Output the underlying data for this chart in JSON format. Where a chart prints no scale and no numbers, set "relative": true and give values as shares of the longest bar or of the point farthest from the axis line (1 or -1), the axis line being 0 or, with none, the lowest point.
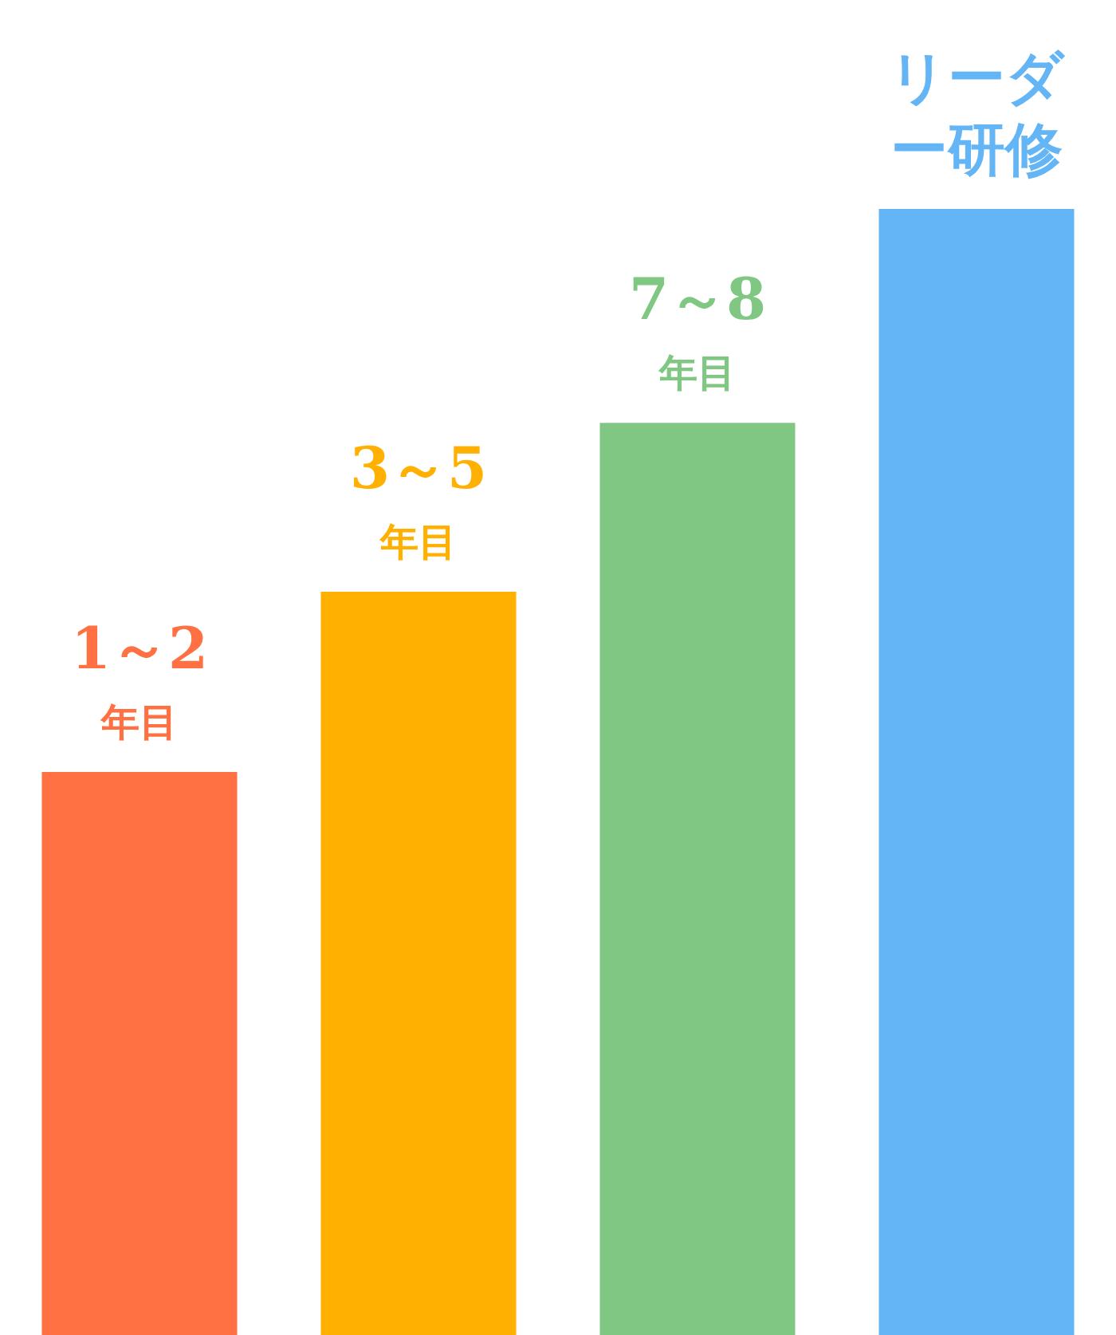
{
  "chart_data": {
    "type": "bar",
    "relative": true,
    "categories": [
      "1～2年目",
      "3～5年目",
      "7～8年目",
      "リーダー研修"
    ],
    "values": [
      0.5,
      0.66,
      0.81,
      1
    ],
    "colors": [
      "#ff7043",
      "#ffb000",
      "#81c784",
      "#64b5f6"
    ]
  }
}
